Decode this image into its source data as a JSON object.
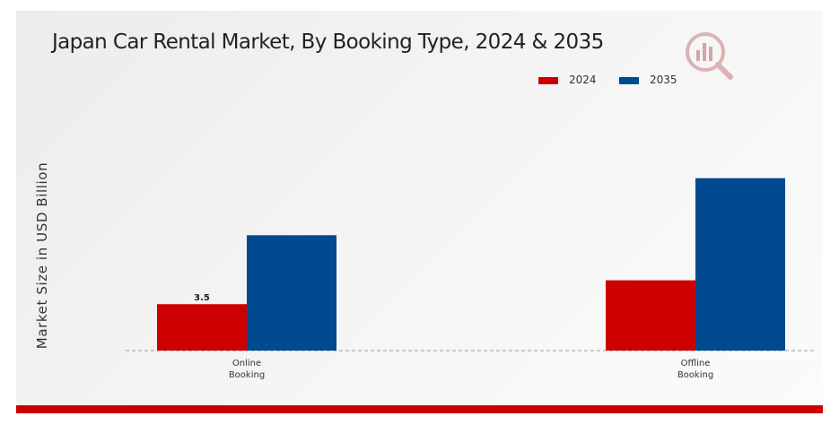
{
  "chart_data": {
    "type": "bar",
    "title": "Japan Car Rental Market, By Booking Type, 2024 & 2035",
    "ylabel": "Market Size in USD Billion",
    "xlabel": "",
    "categories": [
      "Online\nBooking",
      "Offline\nBooking"
    ],
    "series": [
      {
        "name": "2024",
        "color": "#cc0000",
        "values": [
          3.5,
          5.3
        ],
        "labels": [
          "3.5",
          ""
        ]
      },
      {
        "name": "2035",
        "color": "#004a8f",
        "values": [
          8.7,
          13.0
        ],
        "labels": [
          "",
          ""
        ]
      }
    ],
    "ylim": [
      0,
      19
    ],
    "grid": false,
    "legend_position": "top-right"
  },
  "colors": {
    "accent": "#cc0000",
    "series_2024": "#cc0000",
    "series_2035": "#004a8f",
    "logo_icon": "#d6a3a6"
  },
  "icons": {
    "logo": "magnifier-bar-chart-logo-icon"
  }
}
